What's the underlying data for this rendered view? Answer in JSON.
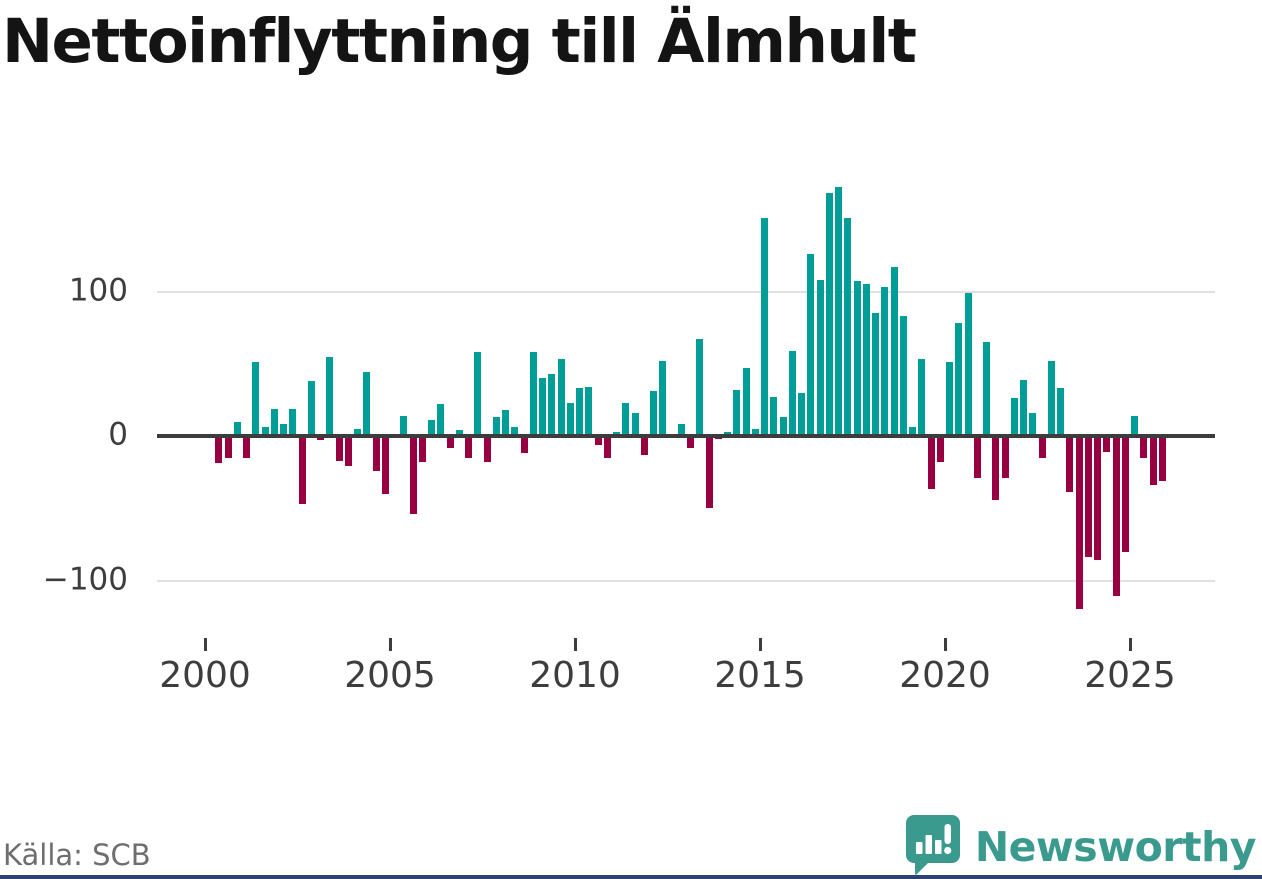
{
  "title": "Nettoinflyttning till Älmhult",
  "source_text": "Källa: SCB",
  "brand": {
    "name": "Newsworthy",
    "icon": "speech-bubble-bar-chart-icon"
  },
  "colors": {
    "positive": "#009E96",
    "negative": "#990042",
    "axis": "#3C3C3C",
    "grid": "#E1E1E1",
    "tick_label": "#3D3D3D",
    "title_text": "#141414",
    "source_text": "#6E6E6E",
    "brand": "#3A9A8E",
    "bottom_strip": "#2E4270"
  },
  "chart_data": {
    "type": "bar",
    "title": "Nettoinflyttning till Älmhult",
    "xlabel": "",
    "ylabel": "",
    "unit": "persons per quarter (net migration)",
    "grid": "horizontal-at-±100-only",
    "legend": "none",
    "x_ticks": [
      "2000",
      "2005",
      "2010",
      "2015",
      "2020",
      "2025"
    ],
    "y_ticks": [
      {
        "label": "100",
        "value": 100
      },
      {
        "label": "0",
        "value": 0
      },
      {
        "label": "−100",
        "value": -100
      }
    ],
    "y_gridlines": [
      100,
      -100
    ],
    "xlim": [
      1998.7,
      2027.3
    ],
    "ylim": [
      -180,
      180
    ],
    "points": [
      {
        "q": "2000Q2",
        "v": -19
      },
      {
        "q": "2000Q3",
        "v": -15
      },
      {
        "q": "2000Q4",
        "v": 10
      },
      {
        "q": "2001Q1",
        "v": -15
      },
      {
        "q": "2001Q2",
        "v": 51
      },
      {
        "q": "2001Q3",
        "v": 6
      },
      {
        "q": "2001Q4",
        "v": 19
      },
      {
        "q": "2002Q1",
        "v": 8
      },
      {
        "q": "2002Q2",
        "v": 19
      },
      {
        "q": "2002Q3",
        "v": -47
      },
      {
        "q": "2002Q4",
        "v": 38
      },
      {
        "q": "2003Q1",
        "v": -3
      },
      {
        "q": "2003Q2",
        "v": 55
      },
      {
        "q": "2003Q3",
        "v": -17
      },
      {
        "q": "2003Q4",
        "v": -21
      },
      {
        "q": "2004Q1",
        "v": 5
      },
      {
        "q": "2004Q2",
        "v": 44
      },
      {
        "q": "2004Q3",
        "v": -24
      },
      {
        "q": "2004Q4",
        "v": -40
      },
      {
        "q": "2005Q1",
        "v": 0
      },
      {
        "q": "2005Q2",
        "v": 14
      },
      {
        "q": "2005Q3",
        "v": -54
      },
      {
        "q": "2005Q4",
        "v": -18
      },
      {
        "q": "2006Q1",
        "v": 11
      },
      {
        "q": "2006Q2",
        "v": 22
      },
      {
        "q": "2006Q3",
        "v": -8
      },
      {
        "q": "2006Q4",
        "v": 4
      },
      {
        "q": "2007Q1",
        "v": -15
      },
      {
        "q": "2007Q2",
        "v": 58
      },
      {
        "q": "2007Q3",
        "v": -18
      },
      {
        "q": "2007Q4",
        "v": 13
      },
      {
        "q": "2008Q1",
        "v": 18
      },
      {
        "q": "2008Q2",
        "v": 6
      },
      {
        "q": "2008Q3",
        "v": -12
      },
      {
        "q": "2008Q4",
        "v": 58
      },
      {
        "q": "2009Q1",
        "v": 40
      },
      {
        "q": "2009Q2",
        "v": 43
      },
      {
        "q": "2009Q3",
        "v": 53
      },
      {
        "q": "2009Q4",
        "v": 23
      },
      {
        "q": "2010Q1",
        "v": 33
      },
      {
        "q": "2010Q2",
        "v": 34
      },
      {
        "q": "2010Q3",
        "v": -6
      },
      {
        "q": "2010Q4",
        "v": -15
      },
      {
        "q": "2011Q1",
        "v": 3
      },
      {
        "q": "2011Q2",
        "v": 23
      },
      {
        "q": "2011Q3",
        "v": 16
      },
      {
        "q": "2011Q4",
        "v": -13
      },
      {
        "q": "2012Q1",
        "v": 31
      },
      {
        "q": "2012Q2",
        "v": 52
      },
      {
        "q": "2012Q3",
        "v": 0
      },
      {
        "q": "2012Q4",
        "v": 8
      },
      {
        "q": "2013Q1",
        "v": -8
      },
      {
        "q": "2013Q2",
        "v": 67
      },
      {
        "q": "2013Q3",
        "v": -50
      },
      {
        "q": "2013Q4",
        "v": -2
      },
      {
        "q": "2014Q1",
        "v": 3
      },
      {
        "q": "2014Q2",
        "v": 32
      },
      {
        "q": "2014Q3",
        "v": 47
      },
      {
        "q": "2014Q4",
        "v": 5
      },
      {
        "q": "2015Q1",
        "v": 151
      },
      {
        "q": "2015Q2",
        "v": 27
      },
      {
        "q": "2015Q3",
        "v": 13
      },
      {
        "q": "2015Q4",
        "v": 59
      },
      {
        "q": "2016Q1",
        "v": 30
      },
      {
        "q": "2016Q2",
        "v": 126
      },
      {
        "q": "2016Q3",
        "v": 108
      },
      {
        "q": "2016Q4",
        "v": 168
      },
      {
        "q": "2017Q1",
        "v": 172
      },
      {
        "q": "2017Q2",
        "v": 151
      },
      {
        "q": "2017Q3",
        "v": 107
      },
      {
        "q": "2017Q4",
        "v": 105
      },
      {
        "q": "2018Q1",
        "v": 85
      },
      {
        "q": "2018Q2",
        "v": 103
      },
      {
        "q": "2018Q3",
        "v": 117
      },
      {
        "q": "2018Q4",
        "v": 83
      },
      {
        "q": "2019Q1",
        "v": 6
      },
      {
        "q": "2019Q2",
        "v": 53
      },
      {
        "q": "2019Q3",
        "v": -37
      },
      {
        "q": "2019Q4",
        "v": -18
      },
      {
        "q": "2020Q1",
        "v": 51
      },
      {
        "q": "2020Q2",
        "v": 78
      },
      {
        "q": "2020Q3",
        "v": 99
      },
      {
        "q": "2020Q4",
        "v": -29
      },
      {
        "q": "2021Q1",
        "v": 65
      },
      {
        "q": "2021Q2",
        "v": -44
      },
      {
        "q": "2021Q3",
        "v": -29
      },
      {
        "q": "2021Q4",
        "v": 26
      },
      {
        "q": "2022Q1",
        "v": 39
      },
      {
        "q": "2022Q2",
        "v": 16
      },
      {
        "q": "2022Q3",
        "v": -15
      },
      {
        "q": "2022Q4",
        "v": 52
      },
      {
        "q": "2023Q1",
        "v": 33
      },
      {
        "q": "2023Q2",
        "v": -39
      },
      {
        "q": "2023Q3",
        "v": -120
      },
      {
        "q": "2023Q4",
        "v": -84
      },
      {
        "q": "2024Q1",
        "v": -86
      },
      {
        "q": "2024Q2",
        "v": -11
      },
      {
        "q": "2024Q3",
        "v": -111
      },
      {
        "q": "2024Q4",
        "v": -80
      },
      {
        "q": "2025Q1",
        "v": 14
      },
      {
        "q": "2025Q2",
        "v": -15
      },
      {
        "q": "2025Q3",
        "v": -34
      },
      {
        "q": "2025Q4",
        "v": -31
      }
    ]
  }
}
